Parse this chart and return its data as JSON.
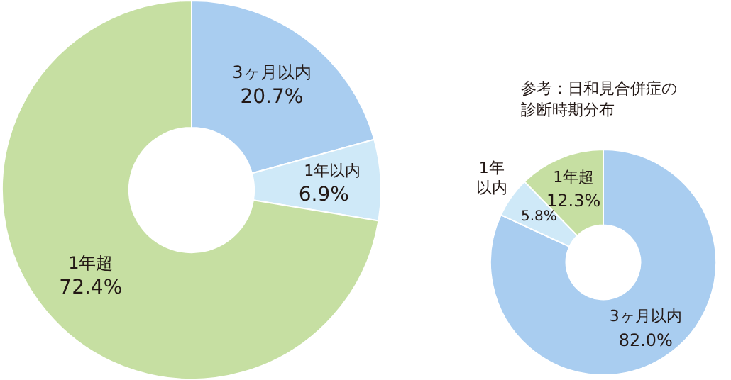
{
  "chart_data": [
    {
      "type": "donut",
      "categories": [
        "3ヶ月以内",
        "1年以内",
        "1年超"
      ],
      "values": [
        20.7,
        6.9,
        72.4
      ],
      "colors": [
        "#a9cdf0",
        "#cfe9f8",
        "#c6dfa2"
      ],
      "value_labels": [
        "20.7%",
        "6.9%",
        "72.4%"
      ],
      "legend": false
    },
    {
      "type": "donut",
      "title": "参考：日和見合併症の診断時期分布",
      "categories": [
        "3ヶ月以内",
        "1年以内",
        "1年超"
      ],
      "values": [
        82.0,
        5.8,
        12.3
      ],
      "colors": [
        "#a9cdf0",
        "#cfe9f8",
        "#c6dfa2"
      ],
      "value_labels": [
        "82.0%",
        "5.8%",
        "12.3%"
      ],
      "legend": false
    }
  ]
}
